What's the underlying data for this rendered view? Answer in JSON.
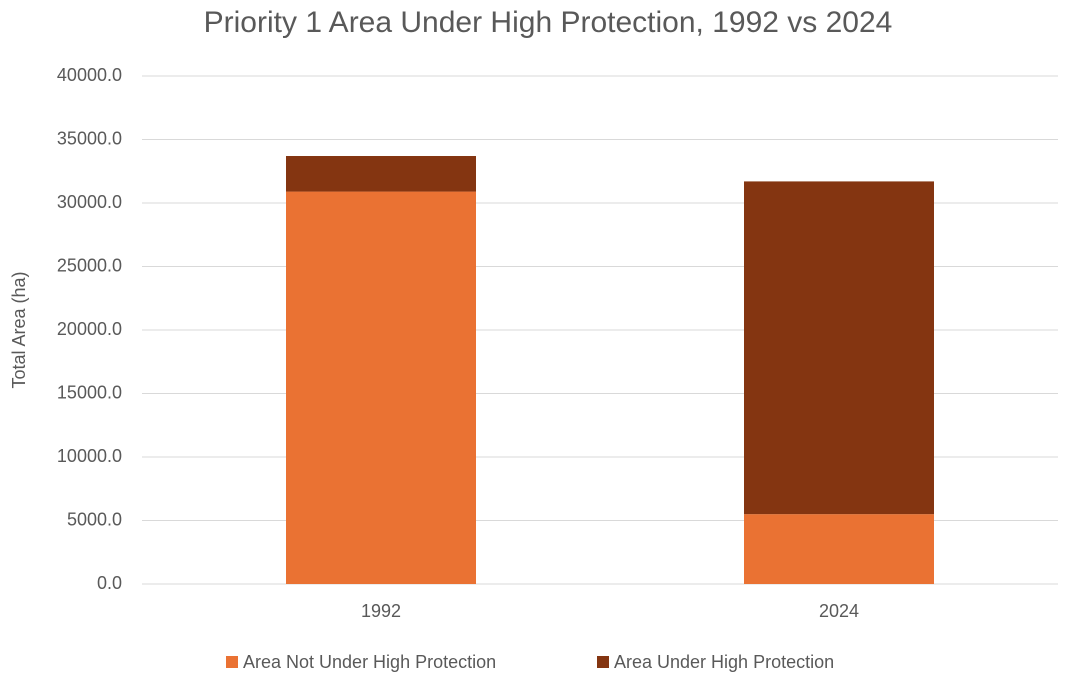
{
  "chart_data": {
    "type": "stacked_bar",
    "title": "Priority 1 Area Under High Protection, 1992 vs 2024",
    "y_label": "Total Area (ha)",
    "categories": [
      "1992",
      "2024"
    ],
    "series": [
      {
        "name": "Area Not Under High Protection",
        "color": "#ea7233",
        "values": [
          30900,
          5500
        ]
      },
      {
        "name": "Area Under High Protection",
        "color": "#843511",
        "values": [
          2800,
          26200
        ]
      }
    ],
    "ylim": [
      0,
      40000
    ],
    "yticks": [
      {
        "value": 0,
        "label": "0.0"
      },
      {
        "value": 5000,
        "label": "5000.0"
      },
      {
        "value": 10000,
        "label": "10000.0"
      },
      {
        "value": 15000,
        "label": "15000.0"
      },
      {
        "value": 20000,
        "label": "20000.0"
      },
      {
        "value": 25000,
        "label": "25000.0"
      },
      {
        "value": 30000,
        "label": "30000.0"
      },
      {
        "value": 35000,
        "label": "35000.0"
      },
      {
        "value": 40000,
        "label": "40000.0"
      }
    ],
    "grid": true,
    "legend": "bottom"
  }
}
